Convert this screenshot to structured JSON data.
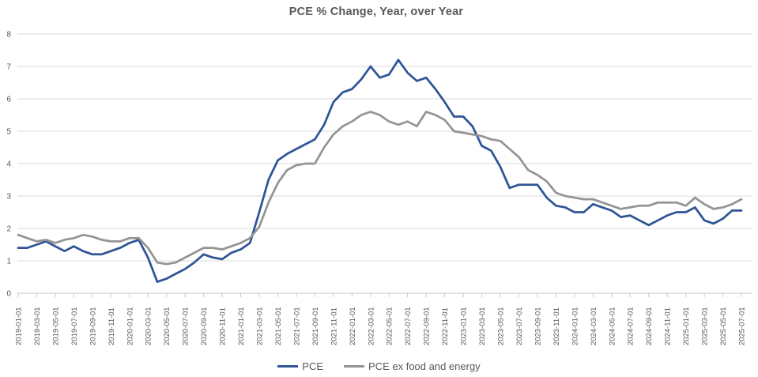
{
  "chart_data": {
    "type": "line",
    "title": "PCE % Change, Year, over Year",
    "xlabel": "",
    "ylabel": "",
    "frequency": "monthly",
    "x_start": "2019-01-01",
    "x_end": "2025-07-01",
    "ylim": [
      0,
      8
    ],
    "y_ticks": [
      0,
      1,
      2,
      3,
      4,
      5,
      6,
      7,
      8
    ],
    "grid": "horizontal",
    "legend_position": "bottom",
    "colors": {
      "grid": "#d9d9d9",
      "axis": "#c9c9c9",
      "axis_text": "#595959"
    },
    "x_tick_labels": [
      "2019-01-01",
      "2019-03-01",
      "2019-05-01",
      "2019-07-01",
      "2019-09-01",
      "2019-11-01",
      "2020-01-01",
      "2020-03-01",
      "2020-05-01",
      "2020-07-01",
      "2020-09-01",
      "2020-11-01",
      "2021-01-01",
      "2021-03-01",
      "2021-05-01",
      "2021-07-01",
      "2021-09-01",
      "2021-11-01",
      "2022-01-01",
      "2022-03-01",
      "2022-05-01",
      "2022-07-01",
      "2022-09-01",
      "2022-11-01",
      "2023-01-01",
      "2023-03-01",
      "2023-05-01",
      "2023-07-01",
      "2023-09-01",
      "2023-11-01",
      "2024-01-01",
      "2024-03-01",
      "2024-05-01",
      "2024-07-01",
      "2024-09-01",
      "2024-11-01",
      "2025-01-01",
      "2025-03-01",
      "2025-05-01",
      "2025-07-01"
    ],
    "series": [
      {
        "name": "PCE",
        "color": "#2f5597",
        "values": [
          1.4,
          1.4,
          1.5,
          1.6,
          1.45,
          1.3,
          1.45,
          1.3,
          1.2,
          1.2,
          1.3,
          1.4,
          1.55,
          1.65,
          1.1,
          0.35,
          0.45,
          0.6,
          0.75,
          0.95,
          1.2,
          1.1,
          1.05,
          1.25,
          1.35,
          1.55,
          2.5,
          3.5,
          4.1,
          4.3,
          4.45,
          4.6,
          4.75,
          5.2,
          5.9,
          6.2,
          6.3,
          6.6,
          7.0,
          6.65,
          6.75,
          7.2,
          6.8,
          6.55,
          6.65,
          6.3,
          5.9,
          5.45,
          5.45,
          5.15,
          4.55,
          4.4,
          3.9,
          3.25,
          3.35,
          3.35,
          3.35,
          2.95,
          2.7,
          2.65,
          2.5,
          2.5,
          2.75,
          2.65,
          2.55,
          2.35,
          2.4,
          2.25,
          2.1,
          2.25,
          2.4,
          2.5,
          2.5,
          2.65,
          2.25,
          2.15,
          2.3,
          2.55,
          2.55
        ]
      },
      {
        "name": "PCE ex food and energy",
        "color": "#949494",
        "values": [
          1.8,
          1.7,
          1.6,
          1.65,
          1.55,
          1.65,
          1.7,
          1.8,
          1.75,
          1.65,
          1.6,
          1.6,
          1.7,
          1.7,
          1.4,
          0.95,
          0.9,
          0.95,
          1.1,
          1.25,
          1.4,
          1.4,
          1.35,
          1.45,
          1.55,
          1.7,
          2.05,
          2.8,
          3.4,
          3.8,
          3.95,
          4.0,
          4.0,
          4.5,
          4.9,
          5.15,
          5.3,
          5.5,
          5.6,
          5.5,
          5.3,
          5.2,
          5.3,
          5.15,
          5.6,
          5.5,
          5.35,
          5.0,
          4.95,
          4.9,
          4.85,
          4.75,
          4.7,
          4.45,
          4.2,
          3.8,
          3.65,
          3.45,
          3.1,
          3.0,
          2.95,
          2.9,
          2.9,
          2.8,
          2.7,
          2.6,
          2.65,
          2.7,
          2.7,
          2.8,
          2.8,
          2.8,
          2.7,
          2.95,
          2.75,
          2.6,
          2.65,
          2.75,
          2.9
        ]
      }
    ]
  }
}
